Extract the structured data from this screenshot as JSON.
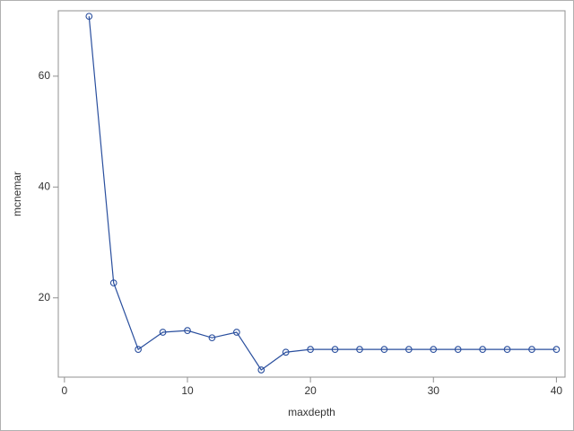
{
  "chart_data": {
    "type": "line",
    "x_label": "maxdepth",
    "y_label": "mcnemar",
    "x": [
      2,
      4,
      6,
      8,
      10,
      12,
      14,
      16,
      18,
      20,
      22,
      24,
      26,
      28,
      30,
      32,
      34,
      36,
      38,
      40
    ],
    "series": [
      {
        "color": "#2a4f9e",
        "values": [
          70.8,
          22.7,
          10.7,
          13.8,
          14.1,
          12.8,
          13.8,
          7.0,
          10.2,
          10.7,
          10.7,
          10.7,
          10.7,
          10.7,
          10.7,
          10.7,
          10.7,
          10.7,
          10.7,
          10.7
        ]
      }
    ],
    "xlim": [
      -0.5,
      40.7
    ],
    "ylim": [
      5.7,
      71.8
    ],
    "xticks": [
      0,
      10,
      20,
      30,
      40
    ],
    "yticks": [
      20,
      40,
      60
    ]
  }
}
